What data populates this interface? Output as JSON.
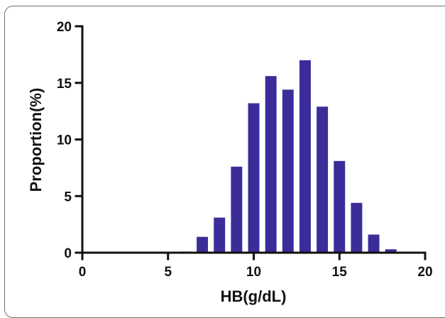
{
  "chart_data": {
    "type": "bar",
    "xlabel": "HB(g/dL)",
    "ylabel": "Proportion(%)",
    "xlim": [
      0,
      20
    ],
    "ylim": [
      0,
      20
    ],
    "xticks": [
      0,
      5,
      10,
      15,
      20
    ],
    "yticks": [
      0,
      5,
      10,
      15,
      20
    ],
    "grid": false,
    "bar_color": "#3a2d99",
    "x": [
      6,
      7,
      8,
      9,
      10,
      11,
      12,
      13,
      14,
      15,
      16,
      17,
      18
    ],
    "values": [
      0.1,
      1.4,
      3.1,
      7.6,
      13.2,
      15.6,
      14.4,
      17.0,
      12.9,
      8.1,
      4.4,
      1.6,
      0.3
    ]
  }
}
